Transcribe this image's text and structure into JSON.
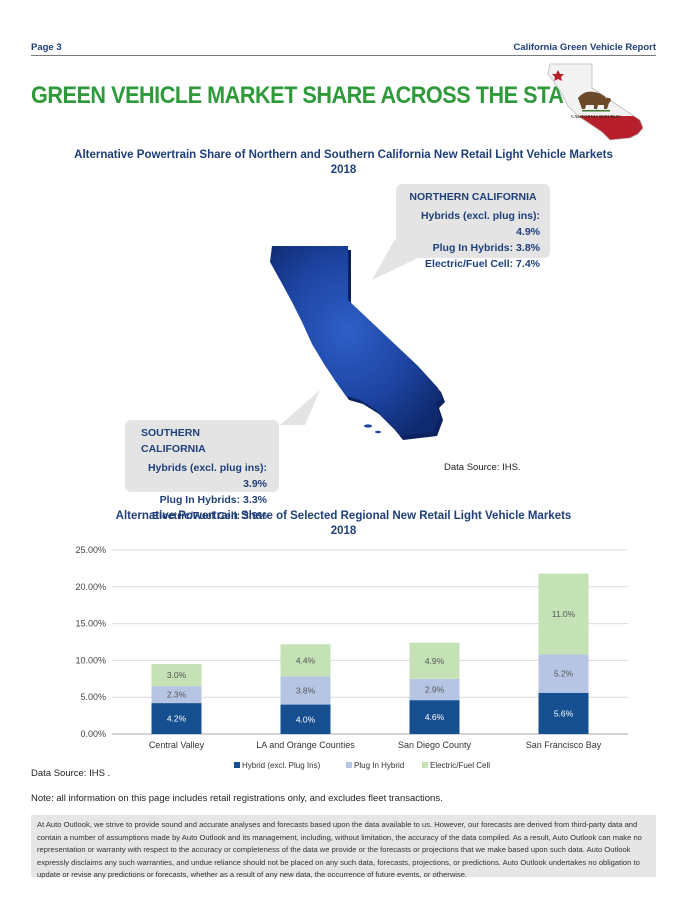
{
  "header": {
    "page": "Page 3",
    "report": "California Green Vehicle Report"
  },
  "main_title": "GREEN VEHICLE MARKET SHARE ACROSS THE STATE",
  "flag_text": "CALIFORNIA REPUBLIC",
  "colors": {
    "green_title": "#2e9a3a",
    "navy": "#1f3f7a",
    "hybrid": "#164f8f",
    "plugin": "#b6c5e4",
    "electric": "#c5e2b7"
  },
  "map_section": {
    "title_line1": "Alternative Powertrain Share of Northern and Southern California New Retail Light Vehicle Markets",
    "title_line2": "2018",
    "north": {
      "heading": "NORTHERN CALIFORNIA",
      "lines": [
        "Hybrids (excl. plug ins): 4.9%",
        "Plug In Hybrids: 3.8%",
        "Electric/Fuel Cell: 7.4%"
      ]
    },
    "south": {
      "heading": "SOUTHERN CALIFORNIA",
      "lines": [
        "Hybrids (excl. plug ins): 3.9%",
        "Plug In Hybrids: 3.3%",
        "Electric/Fuel Cell: 3.9%"
      ]
    },
    "source": "Data Source: IHS."
  },
  "chart_data": {
    "type": "bar",
    "stacked": true,
    "title": "Alternative Powertrain Share of Selected Regional New Retail Light Vehicle Markets",
    "subtitle": "2018",
    "categories": [
      "Central Valley",
      "LA and Orange Counties",
      "San Diego County",
      "San Francisco Bay"
    ],
    "series": [
      {
        "name": "Hybrid (excl. Plug Ins)",
        "values": [
          4.2,
          4.0,
          4.6,
          5.6
        ],
        "labels": [
          "4.2%",
          "4.0%",
          "4.6%",
          "5.6%"
        ],
        "color": "#164f8f"
      },
      {
        "name": "Plug In Hybrid",
        "values": [
          2.3,
          3.8,
          2.9,
          5.2
        ],
        "labels": [
          "2.3%",
          "3.8%",
          "2.9%",
          "5.2%"
        ],
        "color": "#b6c5e4"
      },
      {
        "name": "Electric/Fuel Cell",
        "values": [
          3.0,
          4.4,
          4.9,
          11.0
        ],
        "labels": [
          "3.0%",
          "4.4%",
          "4.9%",
          "11.0%"
        ],
        "color": "#c5e2b7"
      }
    ],
    "ylim": [
      0,
      25
    ],
    "yticks": [
      0,
      5,
      10,
      15,
      20,
      25
    ],
    "ytick_labels": [
      "0.00%",
      "5.00%",
      "10.00%",
      "15.00%",
      "20.00%",
      "25.00%"
    ],
    "grid": true,
    "legend": "bottom",
    "xlabel": "",
    "ylabel": ""
  },
  "chart_source": "Data Source: IHS .",
  "note": "Note: all information on this page includes retail registrations only, and excludes fleet transactions.",
  "disclaimer": "At Auto Outlook, we strive to provide sound and accurate analyses and forecasts based upon the data available to us. However, our forecasts are derived from third-party data and contain a number of assumptions made by Auto Outlook and its management, including, without limitation, the accuracy of the data compiled. As a result, Auto Outlook can make no representation or warranty with respect to the accuracy or completeness of the data we provide or the forecasts or projections that we make based upon such data. Auto Outlook expressly disclaims any such warranties, and undue reliance should not be placed on any such data, forecasts, projections, or predictions. Auto Outlook undertakes no obligation to update or revise any predictions or forecasts, whether as a result of any new data, the occurrence of future events, or otherwise."
}
